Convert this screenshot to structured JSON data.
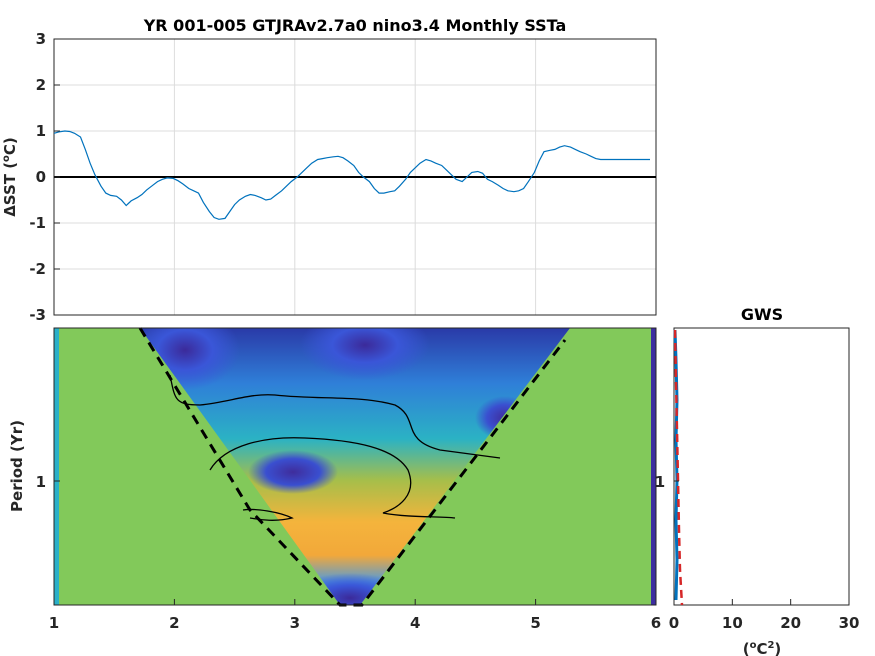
{
  "chart_data": [
    {
      "type": "line",
      "title": "YR 001-005 GTJRAv2.7a0 nino3.4 Monthly SSTa",
      "ylabel_main": "ΔSST (",
      "ylabel_sup": "o",
      "ylabel_end": "C)",
      "xlim": [
        1,
        6
      ],
      "ylim": [
        -3,
        3
      ],
      "x_ticks": [
        "1",
        "2",
        "3",
        "4",
        "5",
        "6"
      ],
      "y_ticks": [
        "-3",
        "-2",
        "-1",
        "0",
        "1",
        "2",
        "3"
      ],
      "zero_line": true,
      "line_color": "#0072bd",
      "x": [
        1.0,
        1.04,
        1.09,
        1.13,
        1.17,
        1.22,
        1.26,
        1.3,
        1.34,
        1.39,
        1.43,
        1.47,
        1.52,
        1.56,
        1.6,
        1.64,
        1.69,
        1.73,
        1.77,
        1.82,
        1.86,
        1.9,
        1.94,
        1.99,
        2.03,
        2.07,
        2.12,
        2.16,
        2.2,
        2.24,
        2.29,
        2.33,
        2.37,
        2.42,
        2.46,
        2.5,
        2.54,
        2.59,
        2.63,
        2.67,
        2.72,
        2.76,
        2.8,
        2.84,
        2.89,
        2.93,
        2.97,
        3.02,
        3.06,
        3.1,
        3.14,
        3.19,
        3.23,
        3.27,
        3.32,
        3.36,
        3.4,
        3.44,
        3.49,
        3.53,
        3.57,
        3.62,
        3.66,
        3.7,
        3.74,
        3.79,
        3.83,
        3.87,
        3.92,
        3.96,
        4.0,
        4.04,
        4.09,
        4.13,
        4.17,
        4.22,
        4.26,
        4.3,
        4.34,
        4.39,
        4.43,
        4.47,
        4.52,
        4.56,
        4.6,
        4.64,
        4.69,
        4.73,
        4.77,
        4.82,
        4.86,
        4.9,
        4.94,
        4.99,
        5.03,
        5.07,
        5.12,
        5.16,
        5.2,
        5.24,
        5.29,
        5.33,
        5.37,
        5.42,
        5.46,
        5.5,
        5.54,
        5.59,
        5.63,
        5.67,
        5.72,
        5.76,
        5.8,
        5.84,
        5.89,
        5.95
      ],
      "y": [
        0.95,
        0.98,
        1.0,
        0.99,
        0.95,
        0.87,
        0.6,
        0.3,
        0.05,
        -0.2,
        -0.35,
        -0.4,
        -0.42,
        -0.5,
        -0.62,
        -0.52,
        -0.45,
        -0.38,
        -0.28,
        -0.18,
        -0.1,
        -0.05,
        -0.02,
        -0.03,
        -0.08,
        -0.15,
        -0.25,
        -0.3,
        -0.35,
        -0.55,
        -0.75,
        -0.88,
        -0.92,
        -0.9,
        -0.75,
        -0.6,
        -0.5,
        -0.42,
        -0.38,
        -0.4,
        -0.45,
        -0.5,
        -0.48,
        -0.4,
        -0.3,
        -0.2,
        -0.1,
        0.0,
        0.1,
        0.2,
        0.3,
        0.38,
        0.4,
        0.42,
        0.44,
        0.45,
        0.42,
        0.35,
        0.25,
        0.1,
        0.0,
        -0.1,
        -0.25,
        -0.35,
        -0.35,
        -0.32,
        -0.3,
        -0.2,
        -0.05,
        0.1,
        0.2,
        0.3,
        0.38,
        0.35,
        0.3,
        0.25,
        0.15,
        0.05,
        -0.05,
        -0.1,
        0.0,
        0.1,
        0.12,
        0.08,
        -0.05,
        -0.1,
        -0.18,
        -0.25,
        -0.3,
        -0.32,
        -0.3,
        -0.25,
        -0.1,
        0.1,
        0.35,
        0.55,
        0.58,
        0.6,
        0.65,
        0.68,
        0.65,
        0.6,
        0.55,
        0.5,
        0.45,
        0.4,
        0.38,
        0.38,
        0.38,
        0.38,
        0.38,
        0.38,
        0.38,
        0.38,
        0.38,
        0.38
      ]
    },
    {
      "type": "heatmap",
      "ylabel": "Period (Yr)",
      "xlim": [
        1,
        6
      ],
      "x_ticks": [
        "1",
        "2",
        "3",
        "4",
        "5",
        "6"
      ],
      "y_ticks": [
        "1"
      ],
      "colormap": "parula",
      "cone_of_influence": "dashed black",
      "contour": "black"
    },
    {
      "type": "line",
      "title": "GWS",
      "xlabel_main": "(",
      "xlabel_sup1": "o",
      "xlabel_mid": "C",
      "xlabel_sup2": "2",
      "xlabel_end": ")",
      "xlim": [
        0,
        30
      ],
      "x_ticks": [
        "0",
        "10",
        "20",
        "30"
      ],
      "y_ticks": [
        "1"
      ],
      "series_colors": [
        "#0072bd",
        "#d62728"
      ]
    }
  ]
}
